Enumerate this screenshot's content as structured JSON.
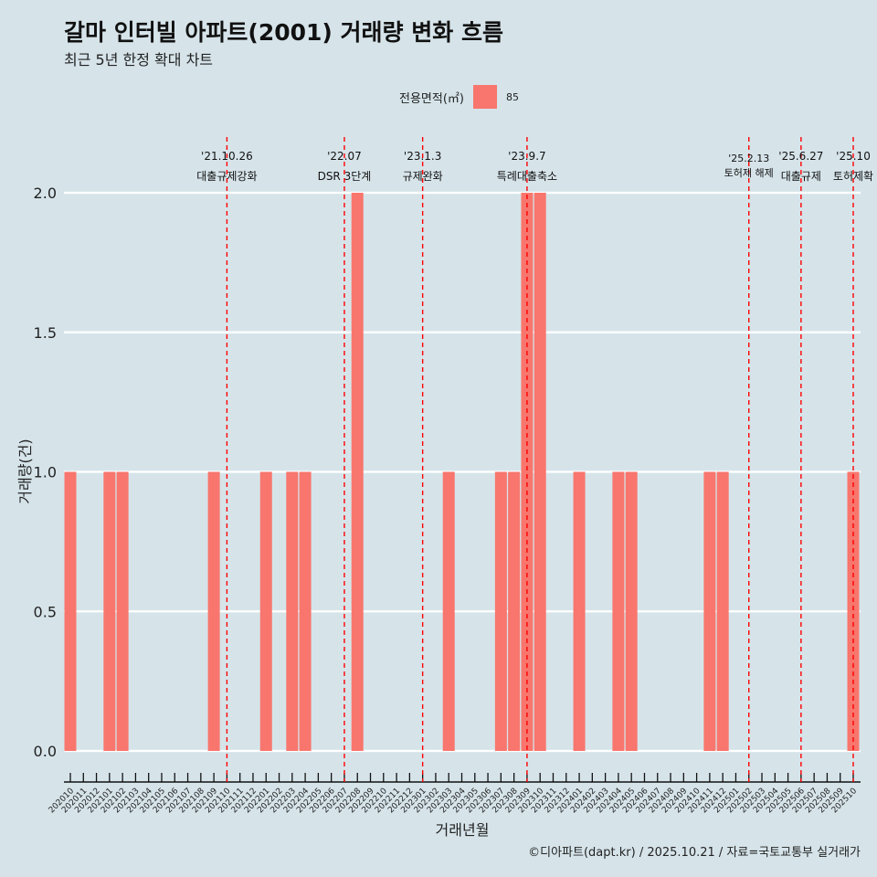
{
  "title": "갈마 인터빌 아파트(2001) 거래량 변화 흐름",
  "subtitle": "최근 5년 한정 확대 차트",
  "legend": {
    "title": "전용면적(㎡)",
    "entry": "85"
  },
  "caption": "©디아파트(dapt.kr) / 2025.10.21 / 자료=국토교통부 실거래가",
  "colors": {
    "bar": "#f8766d",
    "background": "#d6e4ea",
    "vline": "#ff0000"
  },
  "chart_data": {
    "type": "bar",
    "title": "갈마 인터빌 아파트(2001) 거래량 변화 흐름",
    "xlabel": "거래년월",
    "ylabel": "거래량(건)",
    "ylim": [
      0,
      2
    ],
    "yticks": [
      "0.0",
      "0.5",
      "1.0",
      "1.5",
      "2.0"
    ],
    "ytick_values": [
      0,
      0.5,
      1,
      1.5,
      2
    ],
    "categories": [
      "202010",
      "202011",
      "202012",
      "202101",
      "202102",
      "202103",
      "202104",
      "202105",
      "202106",
      "202107",
      "202108",
      "202109",
      "202110",
      "202111",
      "202112",
      "202201",
      "202202",
      "202203",
      "202204",
      "202205",
      "202206",
      "202207",
      "202208",
      "202209",
      "202210",
      "202211",
      "202212",
      "202301",
      "202302",
      "202303",
      "202304",
      "202305",
      "202306",
      "202307",
      "202308",
      "202309",
      "202310",
      "202311",
      "202312",
      "202401",
      "202402",
      "202403",
      "202404",
      "202405",
      "202406",
      "202407",
      "202408",
      "202409",
      "202410",
      "202411",
      "202412",
      "202501",
      "202502",
      "202503",
      "202504",
      "202505",
      "202506",
      "202507",
      "202508",
      "202509",
      "202510"
    ],
    "values": [
      1,
      0,
      0,
      1,
      1,
      0,
      0,
      0,
      0,
      0,
      0,
      1,
      0,
      0,
      0,
      1,
      0,
      1,
      1,
      0,
      0,
      0,
      2,
      0,
      0,
      0,
      0,
      0,
      0,
      1,
      0,
      0,
      0,
      1,
      1,
      2,
      2,
      0,
      0,
      1,
      0,
      0,
      1,
      1,
      0,
      0,
      0,
      0,
      0,
      1,
      1,
      0,
      0,
      0,
      0,
      0,
      0,
      0,
      0,
      0,
      1
    ],
    "series_name": "85",
    "annotations": [
      {
        "category": "202110",
        "date": "'21.10.26",
        "label": "대출규제강화"
      },
      {
        "category": "202207",
        "date": "'22.07",
        "label": "DSR 3단계"
      },
      {
        "category": "202301",
        "date": "'23.1.3",
        "label": "규제완화"
      },
      {
        "category": "202309",
        "date": "'23.9.7",
        "label": "특례대출축소"
      },
      {
        "category": "202502",
        "date": "'25.2.13",
        "label": "토허제 해제"
      },
      {
        "category": "202506",
        "date": "'25.6.27",
        "label": "대출규제"
      },
      {
        "category": "202510",
        "date": "'25.10",
        "label": "토허제확"
      }
    ]
  }
}
